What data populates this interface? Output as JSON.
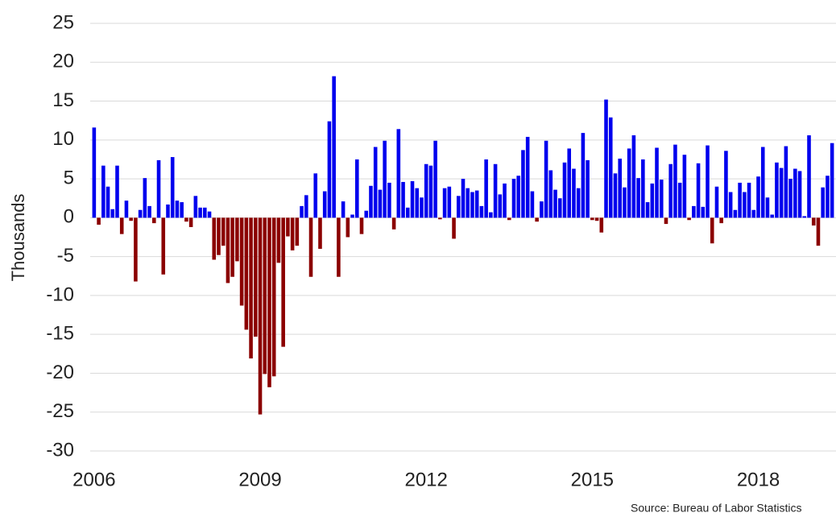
{
  "chart_data": {
    "type": "bar",
    "y_label": "Thousands",
    "source": "Source: Bureau of Labor Statistics",
    "categories": [
      "2006",
      null,
      null,
      null,
      null,
      null,
      null,
      null,
      null,
      null,
      null,
      null,
      null,
      null,
      null,
      null,
      null,
      null,
      null,
      null,
      null,
      null,
      null,
      null,
      null,
      null,
      null,
      null,
      null,
      null,
      null,
      null,
      null,
      null,
      null,
      null,
      "2009",
      null,
      null,
      null,
      null,
      null,
      null,
      null,
      null,
      null,
      null,
      null,
      null,
      null,
      null,
      null,
      null,
      null,
      null,
      null,
      null,
      null,
      null,
      null,
      null,
      null,
      null,
      null,
      null,
      null,
      null,
      null,
      null,
      null,
      null,
      null,
      "2012",
      null,
      null,
      null,
      null,
      null,
      null,
      null,
      null,
      null,
      null,
      null,
      null,
      null,
      null,
      null,
      null,
      null,
      null,
      null,
      null,
      null,
      null,
      null,
      null,
      null,
      null,
      null,
      null,
      null,
      null,
      null,
      null,
      null,
      null,
      null,
      "2015",
      null,
      null,
      null,
      null,
      null,
      null,
      null,
      null,
      null,
      null,
      null,
      null,
      null,
      null,
      null,
      null,
      null,
      null,
      null,
      null,
      null,
      null,
      null,
      null,
      null,
      null,
      null,
      null,
      null,
      null,
      null,
      null,
      null,
      null,
      null,
      "2018",
      null,
      null,
      null,
      null,
      null,
      null,
      null,
      null,
      null,
      null,
      null,
      null,
      null,
      null,
      null,
      null
    ],
    "values": [
      11.6,
      -0.9,
      6.7,
      4.0,
      1.1,
      6.7,
      -2.1,
      2.2,
      -0.4,
      -8.2,
      1.0,
      5.1,
      1.5,
      -0.7,
      7.4,
      -7.3,
      1.7,
      7.8,
      2.2,
      2.0,
      -0.5,
      -1.2,
      2.8,
      1.3,
      1.3,
      0.8,
      -5.4,
      -4.8,
      -3.6,
      -8.4,
      -7.6,
      -5.6,
      -11.3,
      -14.4,
      -18.1,
      -15.3,
      -25.3,
      -20.1,
      -21.8,
      -20.4,
      -5.8,
      -16.6,
      -2.4,
      -4.2,
      -3.6,
      1.5,
      2.9,
      -7.6,
      5.7,
      -4.0,
      3.4,
      12.4,
      18.2,
      -7.6,
      2.1,
      -2.5,
      0.4,
      7.5,
      -2.1,
      0.9,
      4.1,
      9.1,
      3.6,
      9.9,
      4.5,
      -1.5,
      11.4,
      4.6,
      1.3,
      4.7,
      3.8,
      2.6,
      6.9,
      6.7,
      9.9,
      -0.2,
      3.8,
      4.0,
      -2.7,
      2.8,
      5.0,
      3.8,
      3.3,
      3.5,
      1.5,
      7.5,
      0.7,
      6.9,
      3.0,
      4.4,
      -0.3,
      5.0,
      5.4,
      8.7,
      10.4,
      3.4,
      -0.5,
      2.1,
      9.9,
      6.1,
      3.6,
      2.5,
      7.1,
      8.9,
      6.3,
      3.8,
      10.9,
      7.4,
      -0.3,
      -0.4,
      -1.9,
      15.2,
      12.9,
      5.7,
      7.6,
      3.9,
      8.9,
      10.6,
      5.1,
      7.5,
      2.0,
      4.4,
      9.0,
      4.9,
      -0.8,
      6.9,
      9.4,
      4.5,
      8.1,
      -0.3,
      1.5,
      7.0,
      1.4,
      9.3,
      -3.3,
      4.0,
      -0.7,
      8.6,
      3.3,
      1.0,
      4.5,
      3.3,
      4.5,
      1.0,
      5.3,
      9.1,
      2.6,
      0.4,
      7.1,
      6.4,
      9.2,
      5.0,
      6.3,
      6.0,
      0.2,
      10.6,
      -1.0,
      -3.6,
      3.9,
      5.4,
      9.6
    ],
    "positive_color": "#0000ee",
    "negative_color": "#8b0000",
    "ylim": [
      -30,
      25
    ],
    "yticks": [
      -30,
      -25,
      -20,
      -15,
      -10,
      -5,
      0,
      5,
      10,
      15,
      20,
      25
    ],
    "grid": true
  }
}
